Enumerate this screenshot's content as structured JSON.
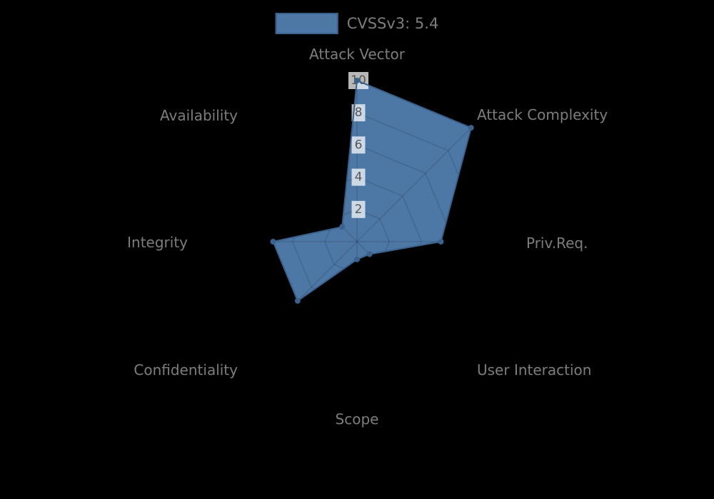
{
  "chart_data": {
    "type": "radar",
    "title": "",
    "legend": "CVSSv3: 5.4",
    "legend_position": "top",
    "categories": [
      "Attack Vector",
      "Attack Complexity",
      "Priv.Req.",
      "User Interaction",
      "Scope",
      "Confidentiality",
      "Integrity",
      "Availability"
    ],
    "series": [
      {
        "name": "CVSSv3: 5.4",
        "values": [
          10,
          10,
          5.2,
          1.1,
          1.1,
          5.2,
          5.2,
          1.3
        ]
      }
    ],
    "scale": {
      "min": 0,
      "max": 10,
      "tick_step": 2,
      "ticks": [
        2,
        4,
        6,
        8,
        10
      ]
    },
    "grid": true,
    "colors": {
      "background": "#000000",
      "fill": "#4d77a4",
      "stroke": "#3b618c",
      "point": "#3b618c",
      "grid_line": "rgba(0,0,0,0.13)",
      "axis_label": "#7d7d7d",
      "tick_text": "#565656",
      "tick_backdrop": "rgba(255,255,255,0.72)",
      "legend_text": "#7d7d7d"
    }
  }
}
